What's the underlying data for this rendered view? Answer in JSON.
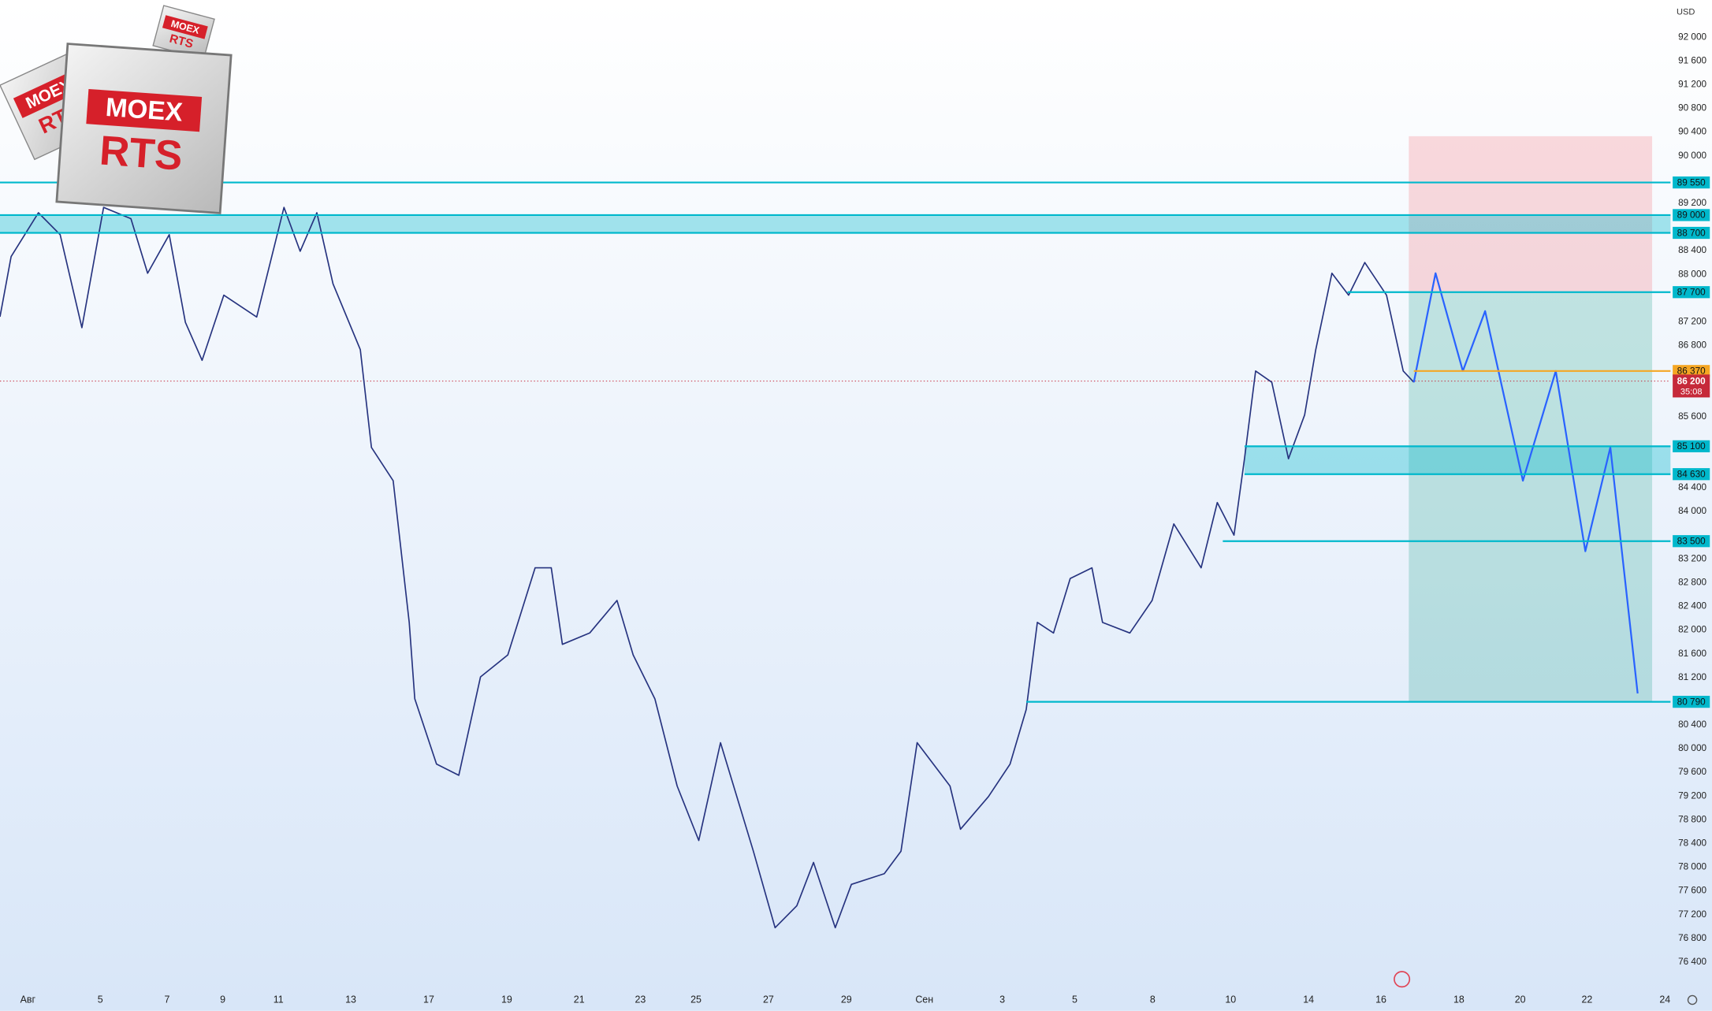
{
  "chart_data": {
    "type": "line",
    "currency": "USD",
    "logo": {
      "brand": "MOEX",
      "ticker": "RTS"
    },
    "xlim": [
      0,
      300
    ],
    "ylim": [
      76000,
      92600
    ],
    "xticks": [
      {
        "value": 5,
        "label": "Авг"
      },
      {
        "value": 18,
        "label": "5"
      },
      {
        "value": 30,
        "label": "7"
      },
      {
        "value": 40,
        "label": "9"
      },
      {
        "value": 50,
        "label": "11"
      },
      {
        "value": 63,
        "label": "13"
      },
      {
        "value": 77,
        "label": "17"
      },
      {
        "value": 91,
        "label": "19"
      },
      {
        "value": 104,
        "label": "21"
      },
      {
        "value": 115,
        "label": "23"
      },
      {
        "value": 125,
        "label": "25"
      },
      {
        "value": 138,
        "label": "27"
      },
      {
        "value": 152,
        "label": "29"
      },
      {
        "value": 166,
        "label": "Сен"
      },
      {
        "value": 180,
        "label": "3"
      },
      {
        "value": 193,
        "label": "5"
      },
      {
        "value": 207,
        "label": "8"
      },
      {
        "value": 221,
        "label": "10"
      },
      {
        "value": 235,
        "label": "14"
      },
      {
        "value": 248,
        "label": "16"
      },
      {
        "value": 262,
        "label": "18"
      },
      {
        "value": 273,
        "label": "20"
      },
      {
        "value": 285,
        "label": "22"
      },
      {
        "value": 299,
        "label": "24"
      }
    ],
    "yticks": [
      {
        "value": 76400,
        "label": "76 400"
      },
      {
        "value": 76800,
        "label": "76 800"
      },
      {
        "value": 77200,
        "label": "77 200"
      },
      {
        "value": 77600,
        "label": "77 600"
      },
      {
        "value": 78000,
        "label": "78 000"
      },
      {
        "value": 78400,
        "label": "78 400"
      },
      {
        "value": 78800,
        "label": "78 800"
      },
      {
        "value": 79200,
        "label": "79 200"
      },
      {
        "value": 79600,
        "label": "79 600"
      },
      {
        "value": 80000,
        "label": "80 000"
      },
      {
        "value": 80400,
        "label": "80 400"
      },
      {
        "value": 81200,
        "label": "81 200"
      },
      {
        "value": 81600,
        "label": "81 600"
      },
      {
        "value": 82000,
        "label": "82 000"
      },
      {
        "value": 82400,
        "label": "82 400"
      },
      {
        "value": 82800,
        "label": "82 800"
      },
      {
        "value": 83200,
        "label": "83 200"
      },
      {
        "value": 84000,
        "label": "84 000"
      },
      {
        "value": 84400,
        "label": "84 400"
      },
      {
        "value": 85600,
        "label": "85 600"
      },
      {
        "value": 86800,
        "label": "86 800"
      },
      {
        "value": 87200,
        "label": "87 200"
      },
      {
        "value": 88000,
        "label": "88 000"
      },
      {
        "value": 88400,
        "label": "88 400"
      },
      {
        "value": 89200,
        "label": "89 200"
      },
      {
        "value": 90000,
        "label": "90 000"
      },
      {
        "value": 90400,
        "label": "90 400"
      },
      {
        "value": 90800,
        "label": "90 800"
      },
      {
        "value": 91200,
        "label": "91 200"
      },
      {
        "value": 91600,
        "label": "91 600"
      },
      {
        "value": 92000,
        "label": "92 000"
      }
    ],
    "grid": false,
    "series": [
      {
        "color": "#26337f",
        "x": [
          0,
          2,
          6.9,
          10.8,
          14.7,
          18.6,
          23.5,
          26.5,
          30.4,
          33.3,
          36.3,
          40.2,
          46.1,
          51,
          53.9,
          56.9,
          59.8,
          64.7,
          66.7,
          70.6,
          73.5,
          74.5,
          78.4,
          82.4,
          86.3,
          91.2,
          96.1,
          99,
          101,
          105.9,
          110.8,
          113.7,
          117.6,
          121.6,
          125.5,
          129.4,
          135.3,
          139.2,
          143.1,
          146.1,
          150,
          152.9,
          158.8,
          161.8,
          164.7,
          170.6,
          172.5,
          177.5,
          181.4,
          184.3,
          186.3,
          189.2,
          192.2,
          196.1,
          198,
          202.9,
          206.9,
          210.8,
          215.7,
          218.6,
          221.6,
          223.5,
          225.5,
          228.4,
          231.4,
          234.3,
          236.3,
          239.2,
          242.2,
          245.1,
          249,
          252,
          253.9
        ],
        "values": [
          87285,
          88300,
          89040,
          88670,
          87100,
          89130,
          88940,
          88020,
          88670,
          87190,
          86550,
          87650,
          87280,
          89130,
          88390,
          89040,
          87840,
          86730,
          85080,
          84520,
          82130,
          80840,
          79740,
          79550,
          81210,
          81580,
          83050,
          83050,
          81760,
          81950,
          82500,
          81580,
          80840,
          79370,
          78450,
          80100,
          78270,
          76980,
          77350,
          78080,
          76980,
          77710,
          77890,
          78270,
          80100,
          79370,
          78640,
          79190,
          79740,
          80660,
          82130,
          81950,
          82870,
          83050,
          82130,
          81950,
          82500,
          83790,
          83050,
          84150,
          83600,
          84890,
          86370,
          86180,
          84890,
          85630,
          86730,
          88020,
          87650,
          88200,
          87650,
          86370,
          86180
        ]
      },
      {
        "color": "#2962ff",
        "x": [
          253.9,
          257.8,
          262.7,
          266.7,
          273.5,
          279.4,
          284.7,
          289.2,
          294.1
        ],
        "values": [
          86180,
          88020,
          86370,
          87380,
          84520,
          86370,
          83330,
          85080,
          80930
        ]
      }
    ],
    "levels": [
      {
        "value": 89550,
        "label": "89 550",
        "start": 0
      },
      {
        "value": 89000,
        "label": "89 000",
        "start": 0
      },
      {
        "value": 88700,
        "label": "88 700",
        "start": 0
      },
      {
        "value": 87700,
        "label": "87 700",
        "start": 242
      },
      {
        "value": 86370,
        "label": "86 370",
        "start": 253.9,
        "color": "#f5a623"
      },
      {
        "value": 85100,
        "label": "85 100",
        "start": 223.5
      },
      {
        "value": 84630,
        "label": "84 630",
        "start": 223.5
      },
      {
        "value": 83500,
        "label": "83 500",
        "start": 219.6
      },
      {
        "value": 80790,
        "label": "80 790",
        "start": 184.3
      }
    ],
    "level_color": "#00b8cc",
    "zones": [
      {
        "from": 88700,
        "to": 89000,
        "start": 0
      },
      {
        "from": 84630,
        "to": 85100,
        "start": 223.5
      }
    ],
    "position": {
      "start": 253,
      "end": 296.7,
      "stop": 90330,
      "entry": 87700,
      "target": 80790
    },
    "current_price": {
      "value": 86200,
      "label": "86 200",
      "timer": "35:08",
      "color": "#c62a3a"
    }
  }
}
